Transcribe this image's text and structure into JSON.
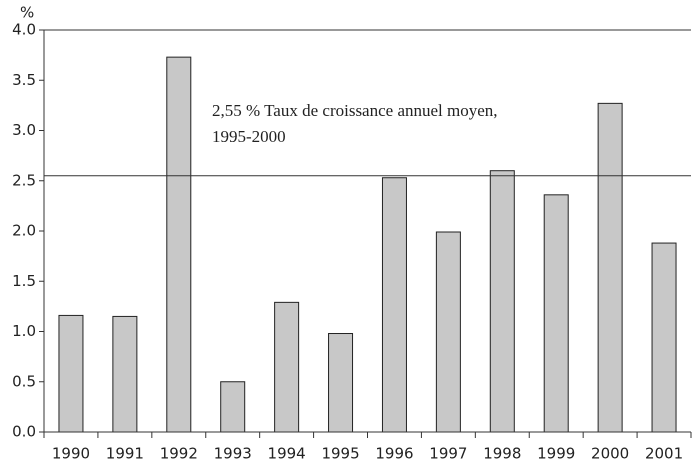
{
  "chart_data": {
    "type": "bar",
    "unit_label": "%",
    "categories": [
      "1990",
      "1991",
      "1992",
      "1993",
      "1994",
      "1995",
      "1996",
      "1997",
      "1998",
      "1999",
      "2000",
      "2001"
    ],
    "values": [
      1.16,
      1.15,
      3.73,
      0.5,
      1.29,
      0.98,
      2.53,
      1.99,
      2.6,
      2.36,
      3.27,
      1.88
    ],
    "color": "#c8c8c8",
    "ylim": [
      0,
      4
    ],
    "yticks": [
      {
        "value": 0,
        "label": "0.0"
      },
      {
        "value": 0.5,
        "label": "0.5"
      },
      {
        "value": 1,
        "label": "1.0"
      },
      {
        "value": 1.5,
        "label": "1.5"
      },
      {
        "value": 2,
        "label": "2.0"
      },
      {
        "value": 2.5,
        "label": "2.5"
      },
      {
        "value": 3,
        "label": "3.0"
      },
      {
        "value": 3.5,
        "label": "3.5"
      },
      {
        "value": 4,
        "label": "4.0"
      }
    ],
    "reference_line": {
      "value": 2.55,
      "annotation": [
        "2,55 % Taux de croissance annuel moyen,",
        "1995-2000"
      ]
    }
  }
}
